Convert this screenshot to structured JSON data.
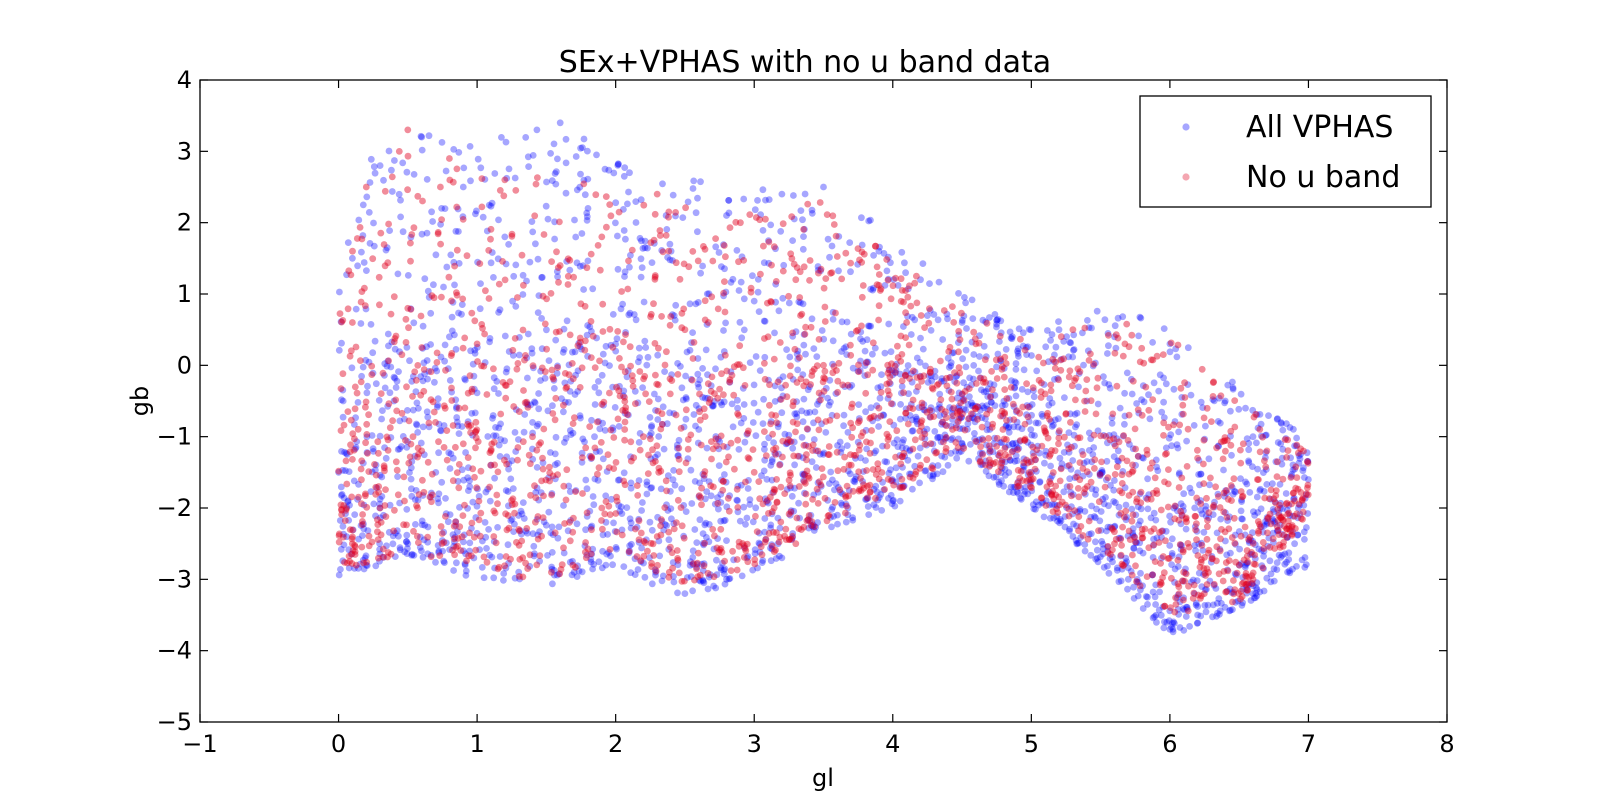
{
  "chart_data": {
    "type": "scatter",
    "title": "SEx+VPHAS with no u band data",
    "xlabel": "gl",
    "ylabel": "gb",
    "xlim": [
      -1,
      8
    ],
    "ylim": [
      -5,
      4
    ],
    "xticks": [
      -1,
      0,
      1,
      2,
      3,
      4,
      5,
      6,
      7,
      8
    ],
    "yticks": [
      -5,
      -4,
      -3,
      -2,
      -1,
      0,
      1,
      2,
      3,
      4
    ],
    "xtick_labels": [
      "−1",
      "0",
      "1",
      "2",
      "3",
      "4",
      "5",
      "6",
      "7",
      "8"
    ],
    "ytick_labels": [
      "−5",
      "−4",
      "−3",
      "−2",
      "−1",
      "0",
      "1",
      "2",
      "3",
      "4"
    ],
    "grid": false,
    "legend_position": "top-right",
    "series": [
      {
        "name": "All VPHAS",
        "color": "#0000ff",
        "alpha": 0.35,
        "footprint": {
          "gl_range": [
            0.0,
            7.0
          ],
          "upper_gb": [
            [
              0.0,
              1.8
            ],
            [
              0.3,
              3.2
            ],
            [
              0.7,
              3.3
            ],
            [
              1.0,
              3.1
            ],
            [
              1.5,
              3.5
            ],
            [
              2.0,
              2.9
            ],
            [
              2.5,
              2.6
            ],
            [
              3.0,
              2.5
            ],
            [
              3.5,
              2.6
            ],
            [
              4.0,
              1.8
            ],
            [
              4.5,
              1.0
            ],
            [
              5.0,
              0.5
            ],
            [
              5.5,
              0.8
            ],
            [
              6.0,
              0.6
            ],
            [
              6.5,
              -0.3
            ],
            [
              7.0,
              -1.0
            ]
          ],
          "lower_gb": [
            [
              0.0,
              -3.0
            ],
            [
              0.5,
              -2.7
            ],
            [
              1.0,
              -3.0
            ],
            [
              1.5,
              -3.1
            ],
            [
              2.0,
              -2.8
            ],
            [
              2.5,
              -3.3
            ],
            [
              3.0,
              -2.9
            ],
            [
              3.5,
              -2.3
            ],
            [
              4.0,
              -2.0
            ],
            [
              4.5,
              -1.3
            ],
            [
              5.0,
              -2.0
            ],
            [
              5.5,
              -2.8
            ],
            [
              6.0,
              -3.8
            ],
            [
              6.5,
              -3.4
            ],
            [
              7.0,
              -2.8
            ]
          ]
        },
        "sample_points": [
          [
            0.1,
            1.5
          ],
          [
            0.3,
            2.8
          ],
          [
            0.6,
            3.2
          ],
          [
            0.9,
            2.5
          ],
          [
            1.2,
            1.8
          ],
          [
            1.6,
            3.4
          ],
          [
            1.8,
            2.2
          ],
          [
            2.1,
            2.7
          ],
          [
            2.4,
            1.6
          ],
          [
            2.8,
            2.1
          ],
          [
            3.2,
            2.4
          ],
          [
            3.5,
            2.5
          ],
          [
            3.9,
            1.6
          ],
          [
            4.2,
            1.2
          ],
          [
            4.5,
            0.6
          ],
          [
            4.9,
            0.2
          ],
          [
            5.2,
            0.5
          ],
          [
            5.6,
            0.4
          ],
          [
            6.0,
            0.3
          ],
          [
            6.4,
            -0.5
          ],
          [
            6.8,
            -1.1
          ],
          [
            7.0,
            -1.6
          ],
          [
            6.9,
            -2.5
          ],
          [
            6.6,
            -3.2
          ],
          [
            6.2,
            -3.5
          ],
          [
            6.0,
            -3.7
          ],
          [
            5.7,
            -3.0
          ],
          [
            5.3,
            -2.4
          ],
          [
            5.0,
            -1.5
          ],
          [
            4.7,
            -0.9
          ],
          [
            4.3,
            -1.2
          ],
          [
            4.0,
            -1.9
          ],
          [
            3.6,
            -2.1
          ],
          [
            3.2,
            -2.7
          ],
          [
            2.8,
            -3.0
          ],
          [
            2.5,
            -3.2
          ],
          [
            2.1,
            -2.6
          ],
          [
            1.7,
            -2.9
          ],
          [
            1.3,
            -2.9
          ],
          [
            0.9,
            -2.6
          ],
          [
            0.5,
            -2.5
          ],
          [
            0.2,
            -2.8
          ],
          [
            0.0,
            -1.5
          ],
          [
            0.4,
            -0.5
          ],
          [
            0.8,
            0.4
          ],
          [
            1.4,
            -0.8
          ],
          [
            2.0,
            0.2
          ],
          [
            2.6,
            -0.9
          ],
          [
            3.0,
            0.9
          ],
          [
            3.4,
            -0.3
          ],
          [
            3.8,
            0.2
          ],
          [
            4.4,
            0.1
          ],
          [
            5.4,
            -0.5
          ],
          [
            6.1,
            -1.8
          ],
          [
            6.6,
            -1.0
          ],
          [
            1.1,
            -1.4
          ]
        ]
      },
      {
        "name": "No u band",
        "color": "#e00020",
        "alpha": 0.45,
        "footprint": {
          "gl_range": [
            0.0,
            7.0
          ],
          "upper_gb": [
            [
              0.0,
              1.2
            ],
            [
              0.3,
              2.9
            ],
            [
              0.7,
              3.2
            ],
            [
              1.0,
              2.8
            ],
            [
              1.5,
              2.7
            ],
            [
              2.0,
              2.5
            ],
            [
              2.5,
              2.3
            ],
            [
              3.0,
              2.4
            ],
            [
              3.5,
              2.3
            ],
            [
              4.0,
              1.5
            ],
            [
              4.5,
              0.8
            ],
            [
              5.0,
              0.3
            ],
            [
              5.5,
              0.7
            ],
            [
              6.0,
              0.4
            ],
            [
              6.5,
              -0.5
            ],
            [
              7.0,
              -1.2
            ]
          ],
          "lower_gb": [
            [
              0.0,
              -2.9
            ],
            [
              0.5,
              -2.6
            ],
            [
              1.0,
              -2.9
            ],
            [
              1.5,
              -3.0
            ],
            [
              2.0,
              -2.6
            ],
            [
              2.5,
              -3.1
            ],
            [
              3.0,
              -2.8
            ],
            [
              3.5,
              -2.2
            ],
            [
              4.0,
              -1.8
            ],
            [
              4.5,
              -1.2
            ],
            [
              5.0,
              -1.8
            ],
            [
              5.5,
              -2.6
            ],
            [
              6.0,
              -3.5
            ],
            [
              6.5,
              -3.3
            ],
            [
              7.0,
              -2.1
            ]
          ]
        },
        "sample_points": [
          [
            0.2,
            2.5
          ],
          [
            0.5,
            3.3
          ],
          [
            0.8,
            2.9
          ],
          [
            1.2,
            2.6
          ],
          [
            1.9,
            1.8
          ],
          [
            2.3,
            2.4
          ],
          [
            2.9,
            2.0
          ],
          [
            3.3,
            1.2
          ],
          [
            3.1,
            0.4
          ],
          [
            3.5,
            0.0
          ],
          [
            3.9,
            -0.6
          ],
          [
            4.1,
            0.6
          ],
          [
            4.6,
            0.3
          ],
          [
            5.1,
            -0.4
          ],
          [
            5.4,
            -0.2
          ],
          [
            5.8,
            -0.7
          ],
          [
            6.2,
            -1.3
          ],
          [
            6.7,
            -1.2
          ],
          [
            6.9,
            -1.9
          ],
          [
            6.5,
            -2.8
          ],
          [
            6.1,
            -2.9
          ],
          [
            5.8,
            -2.3
          ],
          [
            5.6,
            -2.5
          ],
          [
            4.9,
            -1.7
          ],
          [
            4.2,
            -1.4
          ],
          [
            3.7,
            -1.4
          ],
          [
            3.0,
            -1.5
          ],
          [
            2.7,
            -2.3
          ],
          [
            2.3,
            -2.4
          ],
          [
            1.9,
            -2.0
          ],
          [
            1.3,
            -2.3
          ],
          [
            0.9,
            -1.1
          ],
          [
            0.6,
            -1.2
          ],
          [
            0.3,
            -2.0
          ],
          [
            0.1,
            -2.5
          ],
          [
            0.1,
            0.6
          ],
          [
            0.5,
            0.8
          ],
          [
            1.0,
            0.3
          ],
          [
            1.6,
            1.4
          ],
          [
            2.5,
            0.5
          ],
          [
            2.2,
            -1.0
          ],
          [
            1.4,
            -1.0
          ],
          [
            0.7,
            -0.8
          ],
          [
            3.3,
            -2.5
          ],
          [
            4.5,
            -0.4
          ],
          [
            5.3,
            0.5
          ],
          [
            6.6,
            -3.0
          ],
          [
            1.1,
            -1.2
          ]
        ]
      }
    ]
  }
}
